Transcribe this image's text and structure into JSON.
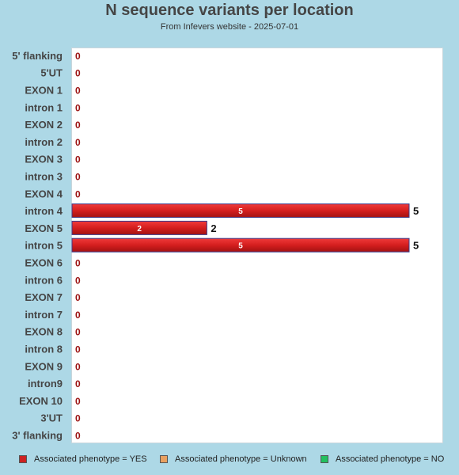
{
  "header": {
    "title": "N sequence variants per location",
    "subtitle": "From Infevers website - 2025-07-01"
  },
  "colors": {
    "yes": "#d42020",
    "unknown": "#e8a060",
    "no": "#22c060",
    "zero_label": "#9b1010"
  },
  "legend": [
    {
      "label": "Associated phenotype = YES",
      "color": "#cc2222"
    },
    {
      "label": "Associated phenotype = Unknown",
      "color": "#e8a060"
    },
    {
      "label": "Associated phenotype = NO",
      "color": "#22c060"
    }
  ],
  "chart_data": {
    "type": "bar",
    "orientation": "horizontal",
    "stacked": true,
    "categories": [
      "5' flanking",
      "5'UT",
      "EXON 1",
      "intron 1",
      "EXON 2",
      "intron 2",
      "EXON 3",
      "intron 3",
      "EXON 4",
      "intron 4",
      "EXON 5",
      "intron 5",
      "EXON 6",
      "intron 6",
      "EXON 7",
      "intron 7",
      "EXON 8",
      "intron 8",
      "EXON 9",
      "intron9",
      "EXON 10",
      "3'UT",
      "3' flanking"
    ],
    "series": [
      {
        "name": "Associated phenotype = YES",
        "values": [
          0,
          0,
          0,
          0,
          0,
          0,
          0,
          0,
          0,
          5,
          2,
          5,
          0,
          0,
          0,
          0,
          0,
          0,
          0,
          0,
          0,
          0,
          0
        ]
      },
      {
        "name": "Associated phenotype = Unknown",
        "values": [
          0,
          0,
          0,
          0,
          0,
          0,
          0,
          0,
          0,
          0,
          0,
          0,
          0,
          0,
          0,
          0,
          0,
          0,
          0,
          0,
          0,
          0,
          0
        ]
      },
      {
        "name": "Associated phenotype = NO",
        "values": [
          0,
          0,
          0,
          0,
          0,
          0,
          0,
          0,
          0,
          0,
          0,
          0,
          0,
          0,
          0,
          0,
          0,
          0,
          0,
          0,
          0,
          0,
          0
        ]
      }
    ],
    "totals": [
      0,
      0,
      0,
      0,
      0,
      0,
      0,
      0,
      0,
      5,
      2,
      5,
      0,
      0,
      0,
      0,
      0,
      0,
      0,
      0,
      0,
      0,
      0
    ],
    "xlim": [
      0,
      5.5
    ],
    "grid": false,
    "legend_position": "bottom"
  }
}
